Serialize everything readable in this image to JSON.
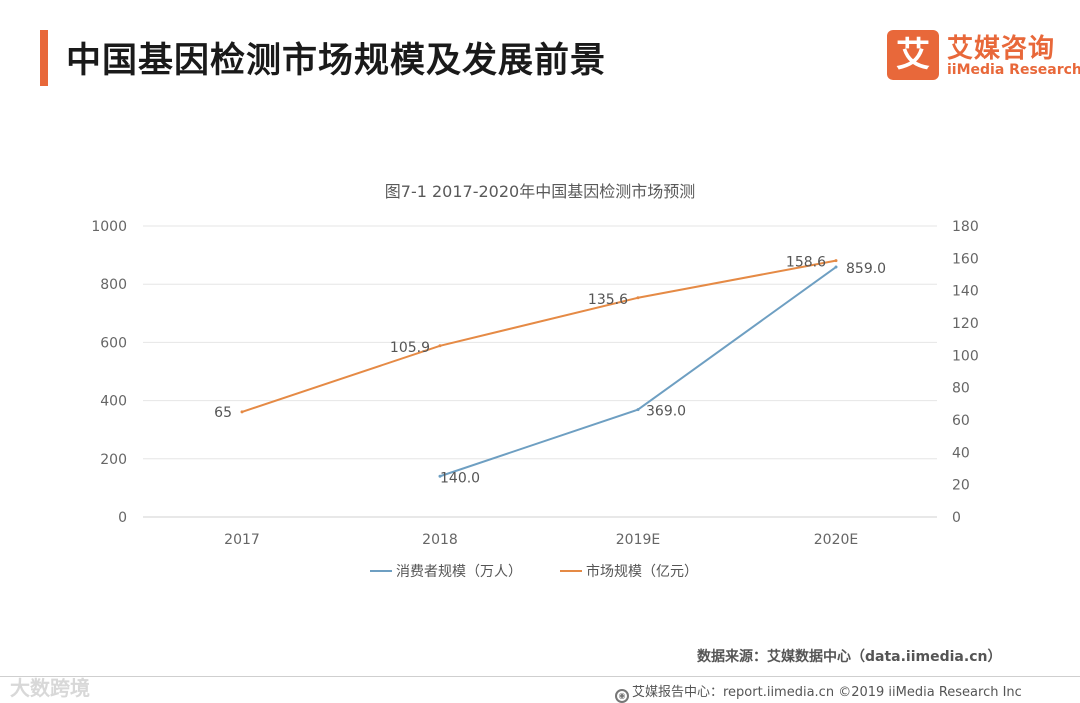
{
  "header": {
    "title": "中国基因检测市场规模及发展前景",
    "accent_color": "#e8683a"
  },
  "logo": {
    "mark": "艾",
    "name_cn": "艾媒咨询",
    "name_en": "iiMedia Research",
    "color": "#e8683a"
  },
  "chart_data": {
    "type": "line",
    "title": "图7-1 2017-2020年中国基因检测市场预测",
    "categories": [
      "2017",
      "2018",
      "2019E",
      "2020E"
    ],
    "left_axis": {
      "ticks": [
        "0",
        "200",
        "400",
        "600",
        "800",
        "1000"
      ],
      "ylim": [
        0,
        1000
      ]
    },
    "right_axis": {
      "ticks": [
        "0",
        "20",
        "40",
        "60",
        "80",
        "100",
        "120",
        "140",
        "160",
        "180"
      ],
      "ylim": [
        0,
        180
      ]
    },
    "grid": true,
    "legend_position": "bottom",
    "series": [
      {
        "name": "消费者规模（万人）",
        "axis": "left",
        "color": "#6e9fc2",
        "values": [
          null,
          140.0,
          369.0,
          859.0
        ],
        "labels": [
          "",
          "140.0",
          "369.0",
          "859.0"
        ]
      },
      {
        "name": "市场规模（亿元）",
        "axis": "right",
        "color": "#e58a45",
        "values": [
          65,
          105.9,
          135.6,
          158.6
        ],
        "labels": [
          "65",
          "105.9",
          "135.6",
          "158.6"
        ]
      }
    ]
  },
  "source_text": "数据来源：艾媒数据中心（data.iimedia.cn）",
  "footer": {
    "icon": "globe-icon",
    "text": "艾媒报告中心：report.iimedia.cn  ©2019  iiMedia Research  Inc"
  },
  "watermark": "大数跨境"
}
